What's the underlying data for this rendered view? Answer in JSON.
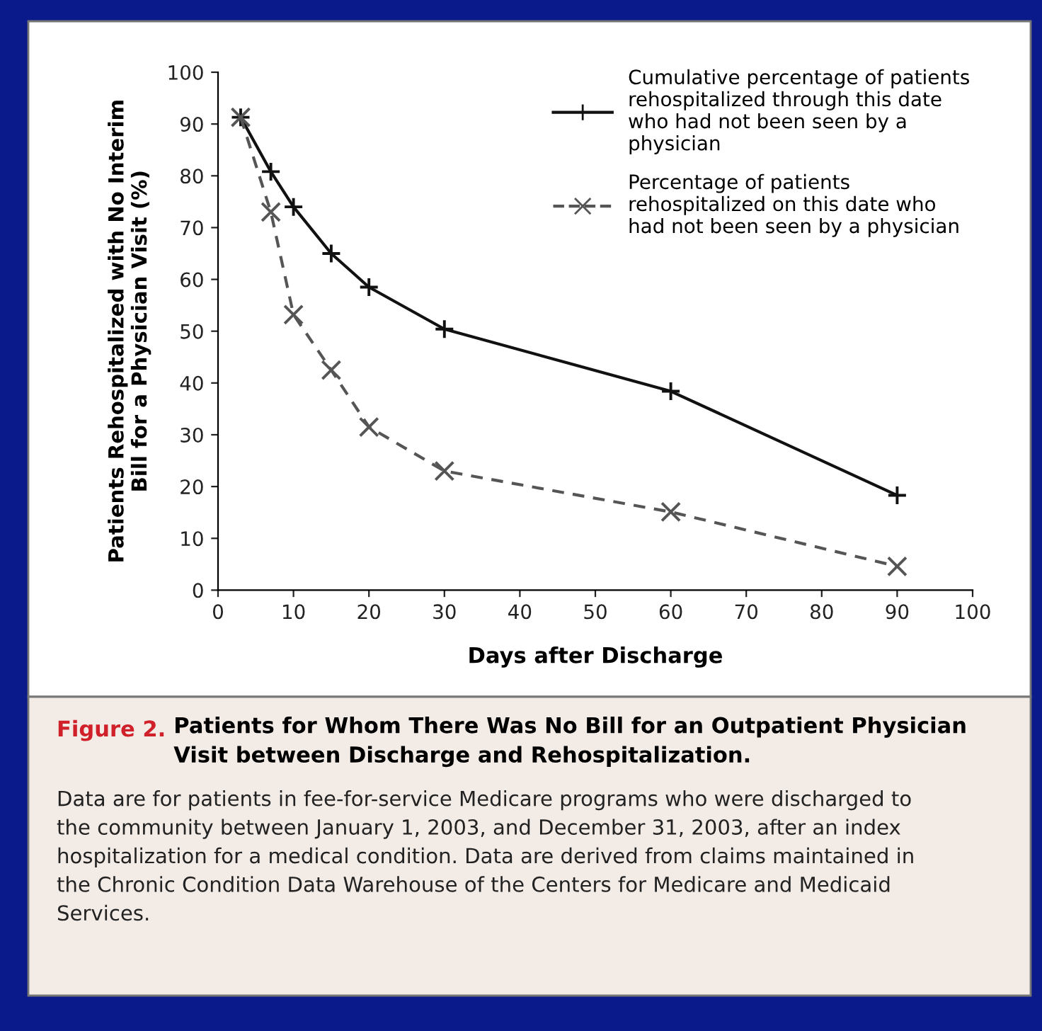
{
  "chart_data": {
    "type": "line",
    "title": "Figure 2.",
    "subtitle": "Patients for Whom There Was No Bill for an Outpatient Physician Visit between Discharge and Rehospitalization.",
    "xlabel": "Days after Discharge",
    "ylabel": "Patients Rehospitalized with No Interim Bill for a Physician Visit (%)",
    "annotations": [
      "Data are for patients in fee-for-service Medicare programs who were discharged to the community between January 1, 2003, and December 31, 2003, after an index hospitalization for a medical condition. Data are derived from claims maintained in the Chronic Condition Data Warehouse of the Centers for Medicare and Medicaid Services."
    ],
    "x": [
      3,
      7,
      10,
      15,
      20,
      30,
      60,
      90
    ],
    "series": [
      {
        "name": "Cumulative percentage of patients rehospitalized through this date who had not been seen by a physician",
        "color": "#111111",
        "marker": "plus",
        "line_style": "solid",
        "values": [
          91.3,
          80.8,
          74.0,
          65.0,
          58.5,
          50.4,
          38.4,
          18.3
        ]
      },
      {
        "name": "Percentage of patients rehospitalized on this date who had not been seen by a physician",
        "color": "#555555",
        "marker": "cross",
        "line_style": "dashed",
        "values": [
          91.3,
          73.0,
          53.2,
          42.5,
          31.5,
          23.0,
          15.1,
          4.6
        ]
      }
    ],
    "xlim": [
      0,
      100
    ],
    "xticks": [
      0,
      10,
      20,
      30,
      40,
      50,
      60,
      70,
      80,
      90,
      100
    ],
    "ylim": [
      0,
      100
    ],
    "yticks": [
      0,
      10,
      20,
      30,
      40,
      50,
      60,
      70,
      80,
      90,
      100
    ],
    "grid": false,
    "legend": "top right"
  }
}
